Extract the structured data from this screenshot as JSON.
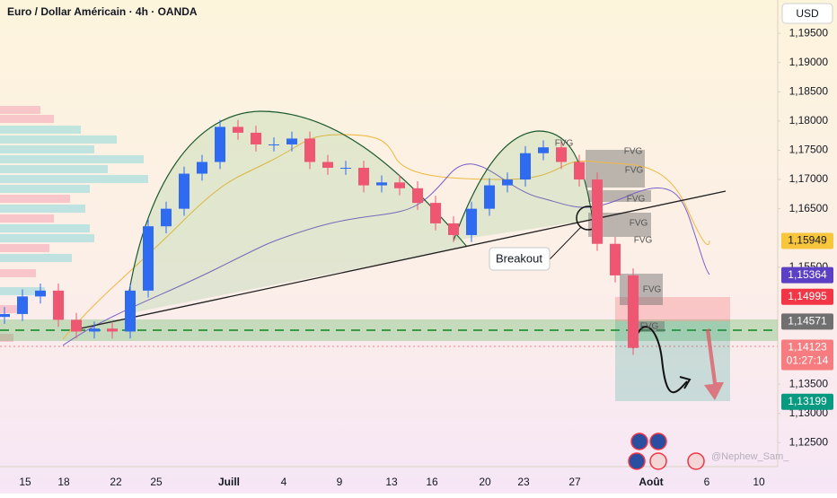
{
  "chart_data": {
    "type": "candlestick",
    "title": "Euro / Dollar Américain · 4h · OANDA",
    "currency": "USD",
    "up_color": "#2f6bf0",
    "down_color": "#ef5672",
    "grid": false,
    "ylim": [
      1.1209,
      1.2007
    ],
    "yticks": [
      {
        "value": 1.195,
        "label": "1,19500"
      },
      {
        "value": 1.19,
        "label": "1,19000"
      },
      {
        "value": 1.185,
        "label": "1,18500"
      },
      {
        "value": 1.18,
        "label": "1,18000"
      },
      {
        "value": 1.175,
        "label": "1,17500"
      },
      {
        "value": 1.17,
        "label": "1,17000"
      },
      {
        "value": 1.165,
        "label": "1,16500"
      },
      {
        "value": 1.155,
        "label": "1,15500"
      },
      {
        "value": 1.135,
        "label": "1,13500"
      },
      {
        "value": 1.13,
        "label": "1,13000"
      },
      {
        "value": 1.125,
        "label": "1,12500"
      }
    ],
    "x_labels": [
      "15",
      "18",
      "22",
      "25",
      "Juill",
      "4",
      "9",
      "13",
      "16",
      "20",
      "23",
      "27",
      "Août",
      "6",
      "10"
    ],
    "open": [
      1.1465,
      1.147,
      1.15,
      1.151,
      1.146,
      1.144,
      1.1445,
      1.144,
      1.151,
      1.162,
      1.165,
      1.171,
      1.173,
      1.179,
      1.178,
      1.176,
      1.176,
      1.177,
      1.173,
      1.172,
      1.172,
      1.169,
      1.1695,
      1.1685,
      1.166,
      1.1625,
      1.1605,
      1.165,
      1.169,
      1.17,
      1.1745,
      1.1755,
      1.173,
      1.17,
      1.159,
      1.1536
    ],
    "high": [
      1.1482,
      1.1512,
      1.1522,
      1.1522,
      1.1472,
      1.1457,
      1.1457,
      1.1522,
      1.1632,
      1.1662,
      1.1722,
      1.1742,
      1.1802,
      1.1802,
      1.1792,
      1.1772,
      1.1782,
      1.1782,
      1.1742,
      1.1732,
      1.1732,
      1.1707,
      1.1707,
      1.1697,
      1.1672,
      1.1637,
      1.1662,
      1.1702,
      1.1712,
      1.1757,
      1.1767,
      1.1767,
      1.1742,
      1.1712,
      1.1602,
      1.1548
    ],
    "low": [
      1.1453,
      1.1458,
      1.1488,
      1.1448,
      1.1428,
      1.1428,
      1.1428,
      1.1428,
      1.1498,
      1.1608,
      1.1638,
      1.1698,
      1.1718,
      1.1768,
      1.1748,
      1.1748,
      1.1748,
      1.1718,
      1.1708,
      1.1708,
      1.1678,
      1.1678,
      1.1673,
      1.1648,
      1.1613,
      1.1593,
      1.1593,
      1.1638,
      1.1678,
      1.1688,
      1.1733,
      1.1718,
      1.1688,
      1.1578,
      1.1524,
      1.14
    ],
    "close": [
      1.147,
      1.15,
      1.151,
      1.146,
      1.144,
      1.1445,
      1.144,
      1.151,
      1.162,
      1.165,
      1.171,
      1.173,
      1.179,
      1.178,
      1.176,
      1.176,
      1.177,
      1.173,
      1.172,
      1.172,
      1.169,
      1.1695,
      1.1685,
      1.166,
      1.1625,
      1.1605,
      1.165,
      1.169,
      1.17,
      1.1745,
      1.1755,
      1.173,
      1.17,
      1.159,
      1.1536,
      1.1412
    ],
    "price_tags": [
      {
        "value": 1.15949,
        "label": "1,15949",
        "color": "#f7c63c"
      },
      {
        "value": 1.15364,
        "label": "1,15364",
        "color": "#5b3fc4"
      },
      {
        "value": 1.14995,
        "label": "1,14995",
        "color": "#f23645"
      },
      {
        "value": 1.14571,
        "label": "1,14571",
        "color": "#707070"
      },
      {
        "value": 1.14123,
        "label": "1,14123",
        "color": "#f77c80",
        "countdown": "01:27:14"
      },
      {
        "value": 1.13199,
        "label": "1,13199",
        "color": "#089981"
      }
    ],
    "annotations": [
      "Breakout",
      "FVG",
      "FVG",
      "FVG",
      "FVG",
      "FVG",
      "FVG",
      "FVG",
      "FVG"
    ],
    "watermark": "@Nephew_Sam_"
  }
}
